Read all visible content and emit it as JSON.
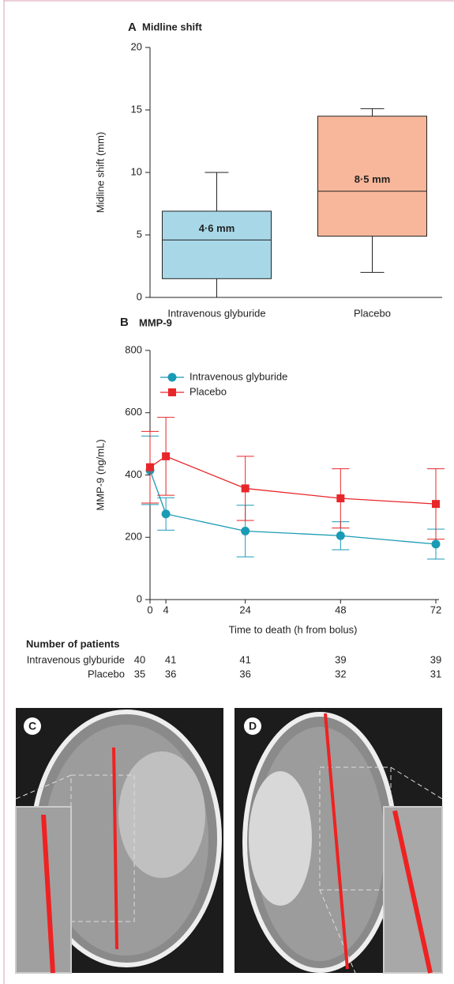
{
  "chart_data": [
    {
      "type": "box",
      "panel": "A",
      "title": "Midline shift",
      "ylabel": "Midline shift (mm)",
      "categories": [
        "Intravenous glyburide",
        "Placebo"
      ],
      "min": [
        0,
        2
      ],
      "q1": [
        1.5,
        4.9
      ],
      "median": [
        4.6,
        8.5
      ],
      "q3": [
        6.9,
        14.5
      ],
      "max": [
        10,
        15.1
      ],
      "value_labels": [
        "4·6 mm",
        "8·5 mm"
      ],
      "colors": [
        "#a8d8e8",
        "#f8b79a"
      ],
      "ylim": [
        0,
        20
      ],
      "yticks": [
        0,
        5,
        10,
        15,
        20
      ]
    },
    {
      "type": "line",
      "panel": "B",
      "title": "MMP-9",
      "ylabel": "MMP-9 (ng/mL)",
      "xlabel": "Time to death (h from bolus)",
      "x": [
        0,
        4,
        24,
        48,
        72
      ],
      "series": [
        {
          "name": "Intravenous glyburide",
          "color": "#1a9bb5",
          "values": [
            415,
            275,
            220,
            205,
            178
          ],
          "error": [
            110,
            52,
            83,
            45,
            48
          ]
        },
        {
          "name": "Placebo",
          "color": "#e8262a",
          "values": [
            425,
            460,
            357,
            325,
            307
          ],
          "error": [
            115,
            125,
            103,
            95,
            113
          ]
        }
      ],
      "xlim": [
        0,
        72
      ],
      "xticks": [
        0,
        4,
        24,
        48,
        72
      ],
      "ylim": [
        0,
        800
      ],
      "yticks": [
        0,
        200,
        400,
        600,
        800
      ]
    }
  ],
  "patients": {
    "title": "Number of patients",
    "rows": [
      {
        "label": "Intravenous glyburide",
        "counts": [
          40,
          41,
          41,
          39,
          39
        ]
      },
      {
        "label": "Placebo",
        "counts": [
          35,
          36,
          36,
          32,
          31
        ]
      }
    ]
  },
  "images": {
    "left_label": "C",
    "right_label": "D"
  }
}
